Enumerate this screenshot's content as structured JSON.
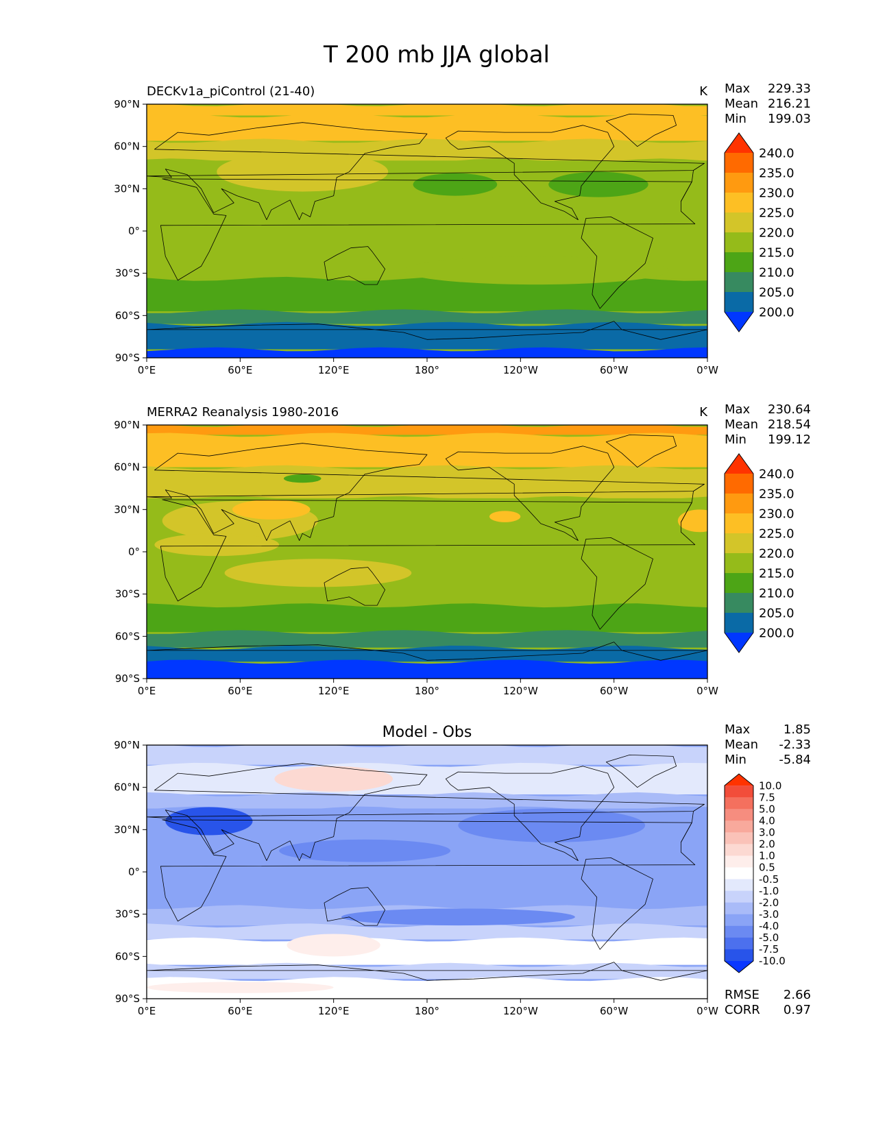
{
  "figure": {
    "title": "T 200 mb JJA global"
  },
  "chart_data": [
    {
      "type": "heatmap",
      "left_title": "DECKv1a_piControl (21-40)",
      "center_title": "",
      "units": "K",
      "stats": [
        {
          "label": "Max",
          "value": "229.33"
        },
        {
          "label": "Mean",
          "value": "216.21"
        },
        {
          "label": "Min",
          "value": "199.03"
        }
      ],
      "x_ticks": [
        "0°E",
        "60°E",
        "120°E",
        "180°",
        "120°W",
        "60°W",
        "0°W"
      ],
      "y_ticks": [
        "90°N",
        "60°N",
        "30°N",
        "0°",
        "30°S",
        "60°S",
        "90°S"
      ],
      "xlim": [
        0,
        360
      ],
      "ylim": [
        -90,
        90
      ],
      "colorbar": {
        "labels": [
          "240.0",
          "235.0",
          "230.0",
          "225.0",
          "220.0",
          "215.0",
          "210.0",
          "205.0",
          "200.0"
        ],
        "colors": [
          "#ff3300",
          "#ff6a00",
          "#ff9a10",
          "#fdbf24",
          "#d3c529",
          "#95bb1a",
          "#4da516",
          "#378a60",
          "#0a6aa6",
          "#0037ff"
        ],
        "extend": "both"
      },
      "field": {
        "base_level": 5,
        "latitude_bands": [
          {
            "lat": [
              82,
              90
            ],
            "level": 3
          },
          {
            "lat": [
              64,
              82
            ],
            "level": 3
          },
          {
            "lat": [
              50,
              64
            ],
            "level": 4
          },
          {
            "lat": [
              -34,
              50
            ],
            "level": 5
          },
          {
            "lat": [
              -57,
              -34
            ],
            "level": 6
          },
          {
            "lat": [
              -66,
              -57
            ],
            "level": 7
          },
          {
            "lat": [
              -84,
              -66
            ],
            "level": 8
          },
          {
            "lat": [
              -90,
              -84
            ],
            "level": 9
          }
        ],
        "anomalies": [
          {
            "lon": 100,
            "lat": 42,
            "rlon": 55,
            "rlat": 14,
            "level": 4
          },
          {
            "lon": 198,
            "lat": 33,
            "rlon": 27,
            "rlat": 8,
            "level": 6
          },
          {
            "lon": 290,
            "lat": 33,
            "rlon": 32,
            "rlat": 9,
            "level": 6
          },
          {
            "lon": 250,
            "lat": -28,
            "rlon": 85,
            "rlat": 10,
            "level": 5
          }
        ]
      }
    },
    {
      "type": "heatmap",
      "left_title": "MERRA2 Reanalysis 1980-2016",
      "center_title": "",
      "units": "K",
      "stats": [
        {
          "label": "Max",
          "value": "230.64"
        },
        {
          "label": "Mean",
          "value": "218.54"
        },
        {
          "label": "Min",
          "value": "199.12"
        }
      ],
      "x_ticks": [
        "0°E",
        "60°E",
        "120°E",
        "180°",
        "120°W",
        "60°W",
        "0°W"
      ],
      "y_ticks": [
        "90°N",
        "60°N",
        "30°N",
        "0°",
        "30°S",
        "60°S",
        "90°S"
      ],
      "xlim": [
        0,
        360
      ],
      "ylim": [
        -90,
        90
      ],
      "colorbar": {
        "labels": [
          "240.0",
          "235.0",
          "230.0",
          "225.0",
          "220.0",
          "215.0",
          "210.0",
          "205.0",
          "200.0"
        ],
        "colors": [
          "#ff3300",
          "#ff6a00",
          "#ff9a10",
          "#fdbf24",
          "#d3c529",
          "#95bb1a",
          "#4da516",
          "#378a60",
          "#0a6aa6",
          "#0037ff"
        ],
        "extend": "both"
      },
      "field": {
        "base_level": 5,
        "latitude_bands": [
          {
            "lat": [
              83,
              90
            ],
            "level": 2
          },
          {
            "lat": [
              60,
              83
            ],
            "level": 3
          },
          {
            "lat": [
              38,
              60
            ],
            "level": 4
          },
          {
            "lat": [
              -38,
              38
            ],
            "level": 5
          },
          {
            "lat": [
              -57,
              -38
            ],
            "level": 6
          },
          {
            "lat": [
              -68,
              -57
            ],
            "level": 7
          },
          {
            "lat": [
              -78,
              -68
            ],
            "level": 8
          },
          {
            "lat": [
              -90,
              -78
            ],
            "level": 9
          }
        ],
        "anomalies": [
          {
            "lon": 60,
            "lat": 22,
            "rlon": 50,
            "rlat": 14,
            "level": 4
          },
          {
            "lon": 80,
            "lat": 30,
            "rlon": 25,
            "rlat": 7,
            "level": 3
          },
          {
            "lon": 110,
            "lat": -15,
            "rlon": 60,
            "rlat": 10,
            "level": 4
          },
          {
            "lon": 45,
            "lat": 5,
            "rlon": 40,
            "rlat": 8,
            "level": 4
          },
          {
            "lon": 230,
            "lat": 25,
            "rlon": 10,
            "rlat": 4,
            "level": 3
          },
          {
            "lon": 355,
            "lat": 22,
            "rlon": 14,
            "rlat": 8,
            "level": 3
          },
          {
            "lon": 100,
            "lat": 52,
            "rlon": 12,
            "rlat": 3,
            "level": 6
          }
        ]
      }
    },
    {
      "type": "heatmap",
      "left_title": "",
      "center_title": "Model - Obs",
      "units": "",
      "stats": [
        {
          "label": "Max",
          "value": "1.85"
        },
        {
          "label": "Mean",
          "value": "-2.33"
        },
        {
          "label": "Min",
          "value": "-5.84"
        }
      ],
      "extra_stats": [
        {
          "label": "RMSE",
          "value": "2.66"
        },
        {
          "label": "CORR",
          "value": "0.97"
        }
      ],
      "x_ticks": [
        "0°E",
        "60°E",
        "120°E",
        "180°",
        "120°W",
        "60°W",
        "0°W"
      ],
      "y_ticks": [
        "90°N",
        "60°N",
        "30°N",
        "0°",
        "30°S",
        "60°S",
        "90°S"
      ],
      "xlim": [
        0,
        360
      ],
      "ylim": [
        -90,
        90
      ],
      "colorbar": {
        "labels": [
          "10.0",
          "7.5",
          "5.0",
          "4.0",
          "3.0",
          "2.0",
          "1.0",
          "0.5",
          "-0.5",
          "-1.0",
          "-2.0",
          "-3.0",
          "-4.0",
          "-5.0",
          "-7.5",
          "-10.0"
        ],
        "colors": [
          "#ff3300",
          "#f24d3a",
          "#f4705e",
          "#f68d7f",
          "#f8a99c",
          "#fac2b8",
          "#fcd9d2",
          "#feeeeb",
          "#ffffff",
          "#e3e9fc",
          "#c8d3fb",
          "#a9bbf8",
          "#8aa4f6",
          "#6b8af2",
          "#4c70ee",
          "#2854ea",
          "#0a37ff"
        ],
        "extend": "both"
      },
      "field": {
        "base_level": 12,
        "latitude_bands": [
          {
            "lat": [
              76,
              90
            ],
            "level": 10
          },
          {
            "lat": [
              55,
              76
            ],
            "level": 9
          },
          {
            "lat": [
              45,
              55
            ],
            "level": 11
          },
          {
            "lat": [
              -25,
              45
            ],
            "level": 12
          },
          {
            "lat": [
              -38,
              -25
            ],
            "level": 11
          },
          {
            "lat": [
              -48,
              -38
            ],
            "level": 10
          },
          {
            "lat": [
              -66,
              -48
            ],
            "level": 8
          },
          {
            "lat": [
              -76,
              -66
            ],
            "level": 10
          },
          {
            "lat": [
              -90,
              -76
            ],
            "level": 8
          }
        ],
        "anomalies": [
          {
            "lon": 120,
            "lat": 66,
            "rlon": 38,
            "rlat": 9,
            "level": 6
          },
          {
            "lon": 40,
            "lat": 36,
            "rlon": 28,
            "rlat": 10,
            "level": 15
          },
          {
            "lon": 260,
            "lat": 33,
            "rlon": 60,
            "rlat": 12,
            "level": 13
          },
          {
            "lon": 140,
            "lat": 15,
            "rlon": 55,
            "rlat": 8,
            "level": 13
          },
          {
            "lon": 200,
            "lat": -32,
            "rlon": 75,
            "rlat": 6,
            "level": 13
          },
          {
            "lon": 120,
            "lat": -52,
            "rlon": 30,
            "rlat": 8,
            "level": 7
          },
          {
            "lon": 60,
            "lat": -82,
            "rlon": 60,
            "rlat": 4,
            "level": 7
          },
          {
            "lon": 275,
            "lat": -57,
            "rlon": 14,
            "rlat": 5,
            "level": 8
          }
        ]
      }
    }
  ]
}
